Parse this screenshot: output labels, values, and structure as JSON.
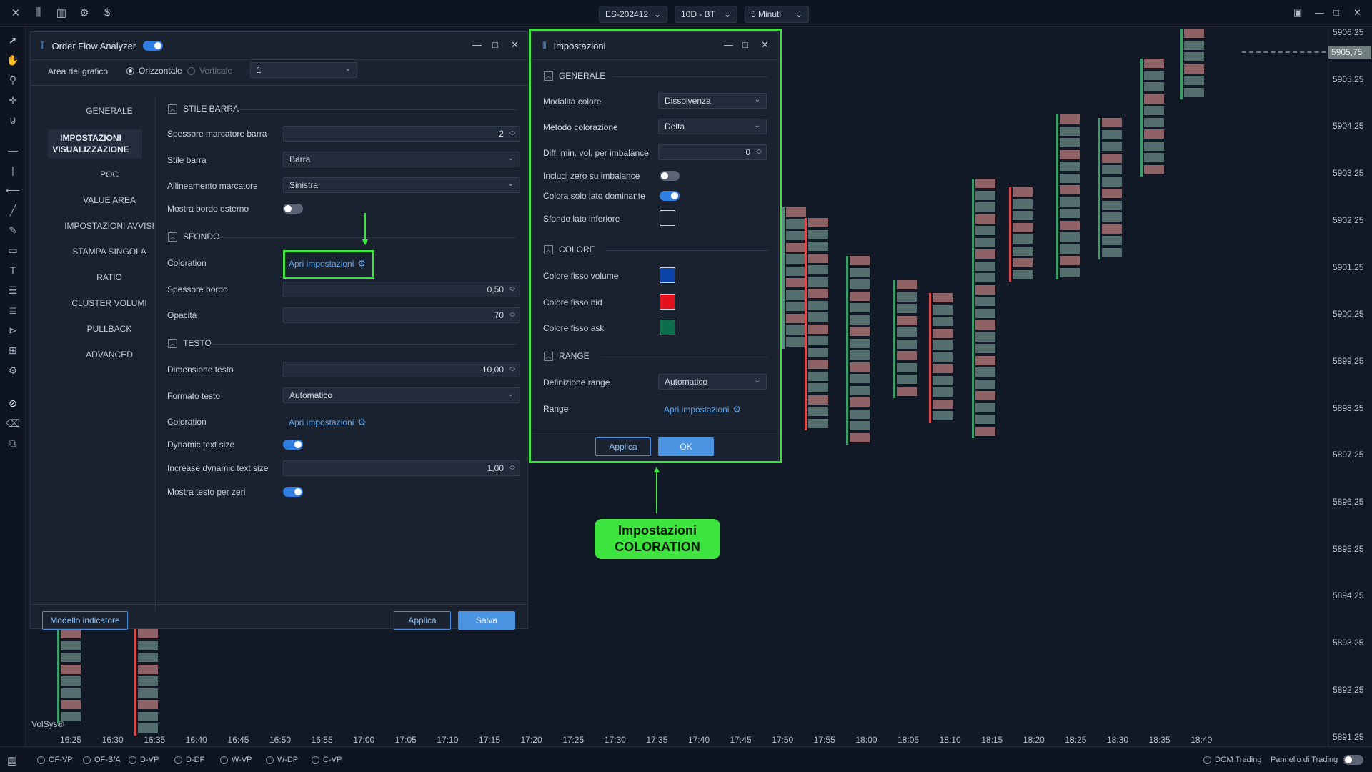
{
  "topbar": {
    "symbol": "ES-202412",
    "period": "10D - BT",
    "timeframe": "5 Minuti"
  },
  "yaxis": {
    "labels": [
      "5906,25",
      "5905,25",
      "5904,25",
      "5903,25",
      "5902,25",
      "5901,25",
      "5900,25",
      "5899,25",
      "5898,25",
      "5897,25",
      "5896,25",
      "5895,25",
      "5894,25",
      "5893,25",
      "5892,25",
      "5891,25"
    ],
    "current": "5905,75"
  },
  "xaxis": [
    "16:25",
    "16:30",
    "16:35",
    "16:40",
    "16:45",
    "16:50",
    "16:55",
    "17:00",
    "17:05",
    "17:10",
    "17:15",
    "17:20",
    "17:25",
    "17:30",
    "17:35",
    "17:40",
    "17:45",
    "17:50",
    "17:55",
    "18:00",
    "18:05",
    "18:10",
    "18:15",
    "18:20",
    "18:25",
    "18:30",
    "18:35",
    "18:40"
  ],
  "watermark": "VolSys®",
  "bottom": {
    "radios": [
      "OF-VP",
      "OF-B/A",
      "D-VP",
      "D-DP",
      "W-VP",
      "W-DP",
      "C-VP"
    ],
    "dom": "DOM Trading",
    "panel": "Pannello di Trading"
  },
  "ofa": {
    "title": "Order Flow Analyzer",
    "area_label": "Area del grafico",
    "orient_h": "Orizzontale",
    "orient_v": "Verticale",
    "area_value": "1",
    "nav": [
      "GENERALE",
      "IMPOSTAZIONI VISUALIZZAZIONE",
      "POC",
      "VALUE AREA",
      "IMPOSTAZIONI AVVISI",
      "STAMPA SINGOLA",
      "RATIO",
      "CLUSTER VOLUMI",
      "PULLBACK",
      "ADVANCED"
    ],
    "sec_bar": "STILE BARRA",
    "sec_bg": "SFONDO",
    "sec_text": "TESTO",
    "rows": {
      "marker_thick": {
        "label": "Spessore marcatore barra",
        "value": "2"
      },
      "bar_style": {
        "label": "Stile barra",
        "value": "Barra"
      },
      "marker_align": {
        "label": "Allineamento marcatore",
        "value": "Sinistra"
      },
      "outer_border": {
        "label": "Mostra bordo esterno"
      },
      "coloration": {
        "label": "Coloration",
        "link": "Apri impostazioni"
      },
      "border_thick": {
        "label": "Spessore bordo",
        "value": "0,50"
      },
      "opacity": {
        "label": "Opacità",
        "value": "70"
      },
      "text_size": {
        "label": "Dimensione testo",
        "value": "10,00"
      },
      "text_format": {
        "label": "Formato testo",
        "value": "Automatico"
      },
      "text_coloration": {
        "label": "Coloration",
        "link": "Apri impostazioni"
      },
      "dyn_text": {
        "label": "Dynamic text size"
      },
      "inc_dyn": {
        "label": "Increase dynamic text size",
        "value": "1,00"
      },
      "zeros": {
        "label": "Mostra testo per zeri"
      }
    },
    "model_btn": "Modello indicatore",
    "apply": "Applica",
    "save": "Salva"
  },
  "imp": {
    "title": "Impostazioni",
    "sec_gen": "GENERALE",
    "sec_col": "COLORE",
    "sec_range": "RANGE",
    "color_mode": {
      "label": "Modalità colore",
      "value": "Dissolvenza"
    },
    "color_method": {
      "label": "Metodo colorazione",
      "value": "Delta"
    },
    "min_diff": {
      "label": "Diff. min. vol. per imbalance",
      "value": "0"
    },
    "zero_imb": {
      "label": "Includi zero su imbalance"
    },
    "dominant": {
      "label": "Colora solo lato dominante"
    },
    "bg_lower": {
      "label": "Sfondo lato inferiore"
    },
    "fix_vol": {
      "label": "Colore fisso volume",
      "color": "#0a43a8"
    },
    "fix_bid": {
      "label": "Colore fisso bid",
      "color": "#e3111b"
    },
    "fix_ask": {
      "label": "Colore fisso ask",
      "color": "#0c6e4a"
    },
    "range_def": {
      "label": "Definizione range",
      "value": "Automatico"
    },
    "range": {
      "label": "Range",
      "link": "Apri impostazioni"
    },
    "apply": "Applica",
    "ok": "OK"
  },
  "callout": {
    "line1": "Impostazioni",
    "line2": "COLORATION"
  },
  "accent": "#3ee43e"
}
